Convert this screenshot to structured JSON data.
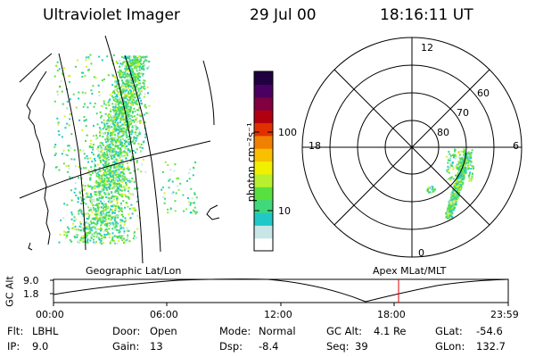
{
  "header": {
    "instrument": "Ultraviolet Imager",
    "date": "29 Jul 00",
    "time": "18:16:11 UT"
  },
  "geo_map": {
    "label": "Geographic Lat/Lon"
  },
  "colorbar": {
    "label": "photon cm⁻²s⁻¹",
    "tick_labels": [
      "100",
      "10"
    ],
    "colors": [
      "#ffffff",
      "#c8e6e6",
      "#20c8c8",
      "#40d87a",
      "#58e040",
      "#b8f030",
      "#f0f000",
      "#f8c000",
      "#f08000",
      "#e03000",
      "#b00010",
      "#800040",
      "#4a0060",
      "#200040"
    ]
  },
  "polar_plot": {
    "label": "Apex MLat/MLT",
    "mlt_labels": {
      "top": "12",
      "left": "18",
      "right": "6",
      "bottom": "0"
    },
    "lat_labels": [
      "60",
      "70",
      "80"
    ]
  },
  "timeline": {
    "axis_label": "GC Alt",
    "y_ticks": [
      "9.0",
      "1.8"
    ],
    "x_ticks": [
      "00:00",
      "06:00",
      "12:00",
      "18:00",
      "23:59"
    ],
    "marker_color": "#e00000"
  },
  "info": {
    "filter_label": "Flt:",
    "filter_value": "LBHL",
    "ip_label": "IP:",
    "ip_value": "9.0",
    "door_label": "Door:",
    "door_value": "Open",
    "gain_label": "Gain:",
    "gain_value": "13",
    "mode_label": "Mode:",
    "mode_value": "Normal",
    "dsp_label": "Dsp:",
    "dsp_value": "-8.4",
    "gcalt_label": "GC Alt:",
    "gcalt_value": "4.1 Re",
    "seq_label": "Seq:",
    "seq_value": "39",
    "glat_label": "GLat:",
    "glat_value": "-54.6",
    "glon_label": "GLon:",
    "glon_value": "132.7"
  }
}
